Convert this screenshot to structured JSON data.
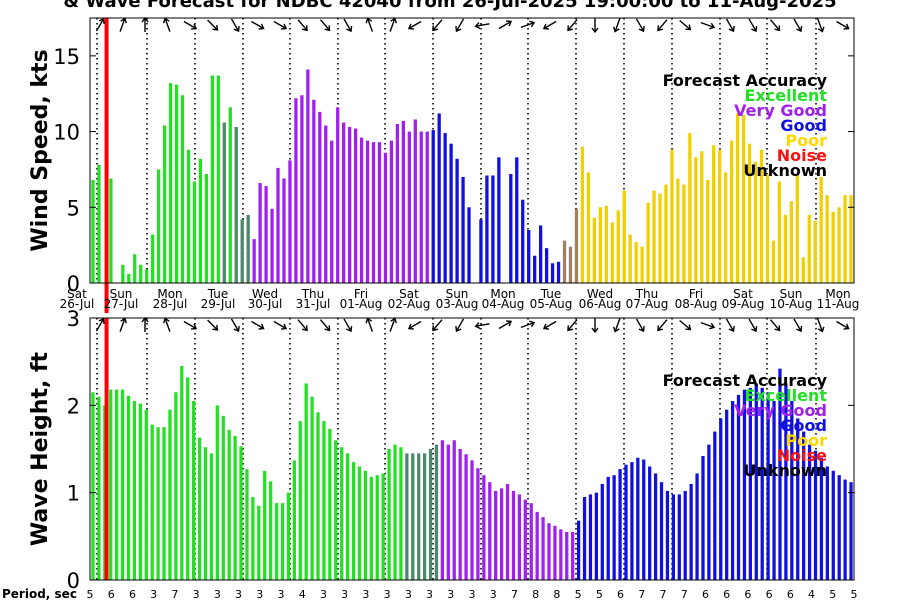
{
  "title": "& Wave Forecast for NDBC 42040 from 26-Jul-2025 19:00:00 to 11-Aug-2025",
  "legend": {
    "title": "Forecast Accuracy",
    "items": [
      {
        "label": "Excellent",
        "color": "#22e022"
      },
      {
        "label": "Very Good",
        "color": "#a020f0"
      },
      {
        "label": "Good",
        "color": "#1010e0"
      },
      {
        "label": "Poor",
        "color": "#ffd700"
      },
      {
        "label": "Noise",
        "color": "#ff1010"
      },
      {
        "label": "Unknown",
        "color": "#000000"
      }
    ]
  },
  "colors": {
    "excellent": "#22e022",
    "transition": "#4a8a6a",
    "very_good": "#a020f0",
    "good": "#1010e0",
    "poor": "#f0d000",
    "tan": "#a08060",
    "noise_line": "#ff0000"
  },
  "day_labels": [
    {
      "dow": "Sat",
      "date": "26-Jul"
    },
    {
      "dow": "Sun",
      "date": "27-Jul"
    },
    {
      "dow": "Mon",
      "date": "28-Jul"
    },
    {
      "dow": "Tue",
      "date": "29-Jul"
    },
    {
      "dow": "Wed",
      "date": "30-Jul"
    },
    {
      "dow": "Thu",
      "date": "31-Jul"
    },
    {
      "dow": "Fri",
      "date": "01-Aug"
    },
    {
      "dow": "Sat",
      "date": "02-Aug"
    },
    {
      "dow": "Sun",
      "date": "03-Aug"
    },
    {
      "dow": "Mon",
      "date": "04-Aug"
    },
    {
      "dow": "Tue",
      "date": "05-Aug"
    },
    {
      "dow": "Wed",
      "date": "06-Aug"
    },
    {
      "dow": "Thu",
      "date": "07-Aug"
    },
    {
      "dow": "Fri",
      "date": "08-Aug"
    },
    {
      "dow": "Sat",
      "date": "09-Aug"
    },
    {
      "dow": "Sun",
      "date": "10-Aug"
    },
    {
      "dow": "Mon",
      "date": "11-Aug"
    }
  ],
  "period_label": "Period, sec",
  "period_values": [
    "5",
    "6",
    "6",
    "3",
    "7",
    "3",
    "3",
    "3",
    "3",
    "3",
    "4",
    "3",
    "3",
    "3",
    "3",
    "3",
    "3",
    "3",
    "3",
    "3",
    "7",
    "8",
    "8",
    "5",
    "5",
    "6",
    "7",
    "7",
    "7",
    "6",
    "6",
    "6",
    "6",
    "6",
    "4",
    "5",
    "5"
  ],
  "chart_data": [
    {
      "type": "bar",
      "ylabel": "Wind Speed, kts",
      "ylim": [
        0,
        17.5
      ],
      "yticks": [
        0,
        5,
        10,
        15
      ],
      "x_unit": "hours since start",
      "x_range": [
        0,
        384
      ],
      "noise_line_x": 2.8,
      "values": [
        6.8,
        7.8,
        0,
        6.9,
        0,
        1.2,
        0.6,
        1.9,
        1.2,
        0.9,
        3.2,
        7.5,
        10.4,
        13.2,
        13.1,
        12.4,
        8.8,
        6.7,
        8.2,
        7.2,
        13.7,
        13.7,
        10.6,
        11.6,
        10.3,
        4.2,
        4.5,
        2.9,
        6.6,
        6.4,
        4.9,
        7.6,
        6.9,
        8.1,
        12.2,
        12.4,
        14.1,
        12.1,
        11.3,
        10.4,
        9.4,
        11.6,
        10.6,
        10.3,
        10.2,
        9.6,
        9.4,
        9.3,
        9.3,
        8.6,
        9.4,
        10.5,
        10.7,
        10.0,
        10.8,
        10.0,
        10.0,
        10.1,
        11.2,
        9.9,
        9.2,
        8.2,
        7.0,
        5.0,
        0,
        4.2,
        7.1,
        7.1,
        8.3,
        0,
        7.2,
        8.3,
        5.5,
        3.5,
        1.8,
        3.8,
        2.3,
        1.3,
        1.4,
        2.8,
        2.4,
        4.9,
        9.0,
        7.3,
        4.3,
        5.0,
        5.1,
        4.0,
        4.8,
        6.1,
        3.2,
        2.7,
        2.4,
        5.3,
        6.1,
        5.9,
        6.5,
        8.8,
        6.9,
        6.5,
        9.9,
        8.3,
        8.7,
        6.8,
        9.1,
        8.8,
        7.3,
        9.4,
        11.2,
        11.1,
        9.2,
        8.0,
        8.8,
        7.2,
        2.8,
        6.7,
        4.5,
        5.4,
        7.2,
        1.7,
        4.5,
        4.1,
        7.0,
        5.8,
        4.7,
        5.0,
        5.8,
        5.8
      ],
      "colors": [
        "E",
        "E",
        "E",
        "E",
        "E",
        "E",
        "E",
        "E",
        "E",
        "E",
        "E",
        "E",
        "E",
        "E",
        "E",
        "E",
        "E",
        "E",
        "E",
        "E",
        "E",
        "E",
        "T",
        "E",
        "T",
        "T",
        "T",
        "V",
        "V",
        "V",
        "V",
        "V",
        "V",
        "V",
        "V",
        "V",
        "V",
        "V",
        "V",
        "V",
        "V",
        "V",
        "V",
        "V",
        "V",
        "V",
        "V",
        "V",
        "V",
        "V",
        "V",
        "V",
        "V",
        "V",
        "V",
        "V",
        "V",
        "G",
        "G",
        "G",
        "G",
        "G",
        "G",
        "G",
        "G",
        "G",
        "G",
        "G",
        "G",
        "G",
        "G",
        "G",
        "G",
        "G",
        "G",
        "G",
        "G",
        "G",
        "G",
        "K",
        "K",
        "K",
        "P",
        "P",
        "P",
        "P",
        "P",
        "P",
        "P",
        "P",
        "P",
        "P",
        "P",
        "P",
        "P",
        "P",
        "P",
        "P",
        "P",
        "P",
        "P",
        "P",
        "P",
        "P",
        "P",
        "P",
        "P",
        "P",
        "P",
        "P",
        "P",
        "P",
        "P",
        "P",
        "P",
        "P",
        "P",
        "P",
        "P",
        "P",
        "P",
        "P",
        "P",
        "P",
        "P",
        "P",
        "P",
        "P",
        "P",
        "P"
      ]
    },
    {
      "type": "bar",
      "ylabel": "Wave Height, ft",
      "ylim": [
        0,
        3
      ],
      "yticks": [
        0,
        1,
        2,
        3
      ],
      "x_unit": "hours since start",
      "x_range": [
        0,
        384
      ],
      "noise_line_x": 2.8,
      "values": [
        2.15,
        2.1,
        2.0,
        2.18,
        2.18,
        2.18,
        2.11,
        2.05,
        2.02,
        1.95,
        1.78,
        1.75,
        1.75,
        1.95,
        2.15,
        2.45,
        2.32,
        2.05,
        1.63,
        1.52,
        1.45,
        2.0,
        1.88,
        1.72,
        1.65,
        1.53,
        1.27,
        0.95,
        0.85,
        1.25,
        1.13,
        0.88,
        0.88,
        1.0,
        1.37,
        1.82,
        2.25,
        2.1,
        1.92,
        1.82,
        1.73,
        1.6,
        1.52,
        1.45,
        1.35,
        1.3,
        1.25,
        1.18,
        1.2,
        1.22,
        1.5,
        1.55,
        1.52,
        1.45,
        1.45,
        1.45,
        1.45,
        1.5,
        1.55,
        1.6,
        1.55,
        1.6,
        1.5,
        1.44,
        1.37,
        1.28,
        1.2,
        1.12,
        1.02,
        1.05,
        1.1,
        1.02,
        0.98,
        0.92,
        0.88,
        0.78,
        0.72,
        0.65,
        0.62,
        0.58,
        0.55,
        0.55,
        0.68,
        0.95,
        0.98,
        1.0,
        1.1,
        1.18,
        1.2,
        1.27,
        1.32,
        1.35,
        1.4,
        1.38,
        1.3,
        1.22,
        1.12,
        1.02,
        0.98,
        0.98,
        1.02,
        1.1,
        1.22,
        1.42,
        1.55,
        1.7,
        1.85,
        1.95,
        2.05,
        2.12,
        2.18,
        2.2,
        2.25,
        2.2,
        2.15,
        2.05,
        2.42,
        2.25,
        2.05,
        1.85,
        1.7,
        1.55,
        1.48,
        1.4,
        1.3,
        1.25,
        1.2,
        1.15,
        1.12
      ],
      "colors": [
        "E",
        "E",
        "E",
        "E",
        "E",
        "E",
        "E",
        "E",
        "E",
        "E",
        "E",
        "E",
        "E",
        "E",
        "E",
        "E",
        "E",
        "E",
        "E",
        "E",
        "E",
        "E",
        "E",
        "E",
        "E",
        "E",
        "E",
        "E",
        "E",
        "E",
        "E",
        "E",
        "E",
        "E",
        "E",
        "E",
        "E",
        "E",
        "E",
        "E",
        "E",
        "E",
        "E",
        "E",
        "E",
        "E",
        "E",
        "E",
        "E",
        "E",
        "E",
        "E",
        "E",
        "T",
        "T",
        "T",
        "T",
        "T",
        "T",
        "V",
        "V",
        "V",
        "V",
        "V",
        "V",
        "V",
        "V",
        "V",
        "V",
        "V",
        "V",
        "V",
        "V",
        "V",
        "V",
        "V",
        "V",
        "V",
        "V",
        "V",
        "V",
        "V",
        "G",
        "G",
        "G",
        "G",
        "G",
        "G",
        "G",
        "G",
        "G",
        "G",
        "G",
        "G",
        "G",
        "G",
        "G",
        "G",
        "G",
        "G",
        "G",
        "G",
        "G",
        "G",
        "G",
        "G",
        "G",
        "G",
        "G",
        "G",
        "G",
        "G",
        "G",
        "G",
        "G",
        "G",
        "G",
        "G",
        "G",
        "G",
        "G",
        "G",
        "G",
        "G",
        "G",
        "G",
        "G",
        "G",
        "G",
        "G"
      ]
    }
  ]
}
